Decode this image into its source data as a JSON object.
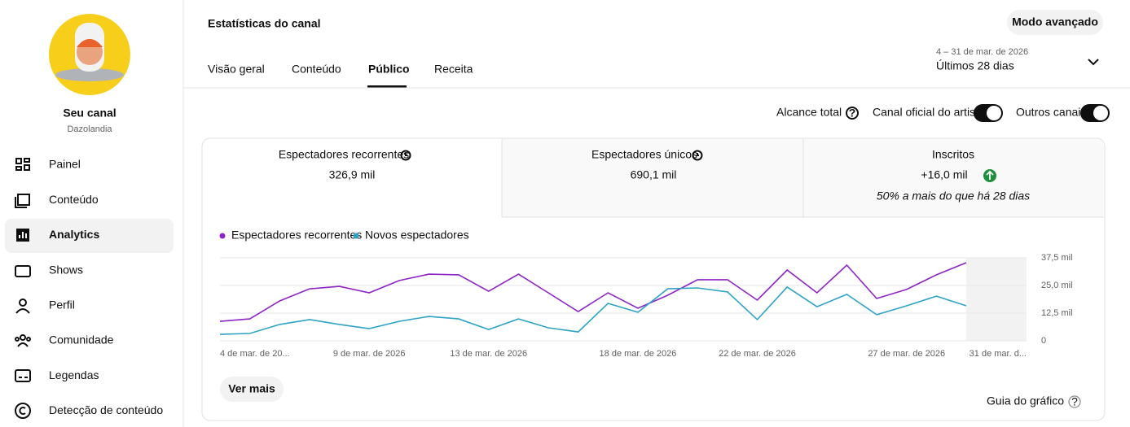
{
  "sidebar": {
    "channel_title": "Seu canal",
    "channel_name": "Dazolandia",
    "nav": [
      "Painel",
      "Conteúdo",
      "Analytics",
      "Shows",
      "Perfil",
      "Comunidade",
      "Legendas",
      "Detecção de conteúdo"
    ]
  },
  "header": {
    "title": "Estatísticas do canal",
    "advanced_button": "Modo avançado",
    "tabs": [
      "Visão geral",
      "Conteúdo",
      "Público",
      "Receita"
    ],
    "date_range": "4 – 31 de mar. de 2026",
    "period": "Últimos 28 dias"
  },
  "filters": {
    "reach": "Alcance total",
    "toggles": [
      "Canal oficial do artista",
      "Outros canais"
    ]
  },
  "metrics": [
    {
      "label": "Espectadores recorrentes",
      "value": "326,9 mil"
    },
    {
      "label": "Espectadores únicos",
      "value": "690,1 mil"
    },
    {
      "label": "Inscritos",
      "value": "+16,0 mil",
      "note": "50% a mais do que há 28 dias"
    }
  ],
  "chart_data": {
    "type": "line",
    "categories": [
      "4 de mar. de 20...",
      null,
      null,
      null,
      null,
      "9 de mar. de 2026",
      null,
      null,
      null,
      "13 de mar. de 2026",
      null,
      null,
      null,
      null,
      "18 de mar. de 2026",
      null,
      null,
      null,
      "22 de mar. de 2026",
      null,
      null,
      null,
      null,
      "27 de mar. de 2026",
      null,
      null,
      null,
      "31 de mar. d..."
    ],
    "series": [
      {
        "name": "Espectadores recorrentes",
        "color": "#8e24c4",
        "values": [
          8.8,
          9.9,
          18.0,
          23.5,
          24.6,
          21.7,
          27.2,
          30.1,
          29.8,
          22.4,
          30.1,
          21.7,
          13.2,
          21.7,
          14.7,
          20.6,
          27.6,
          27.6,
          18.4,
          32.0,
          21.7,
          34.2,
          19.1,
          23.2,
          29.8,
          35.3,
          null,
          null
        ]
      },
      {
        "name": "Novos espectadores",
        "color": "#2ea3c6",
        "values": [
          2.9,
          3.3,
          7.4,
          9.6,
          7.4,
          5.5,
          8.8,
          11.0,
          9.9,
          5.1,
          9.9,
          5.9,
          4.0,
          16.9,
          12.9,
          23.5,
          23.9,
          22.1,
          9.6,
          24.3,
          15.4,
          21.0,
          11.8,
          15.8,
          20.2,
          15.8,
          null,
          null
        ]
      }
    ],
    "ylim": [
      0,
      37.5
    ],
    "yticks": [
      0,
      {
        "value": 12.5,
        "label": "12,5 mil"
      },
      {
        "value": 25,
        "label": "25,0 mil"
      },
      {
        "value": 37.5,
        "label": "37,5 mil"
      }
    ],
    "grid": true
  },
  "footer": {
    "more_button": "Ver mais",
    "guide": "Guia do gráfico"
  }
}
